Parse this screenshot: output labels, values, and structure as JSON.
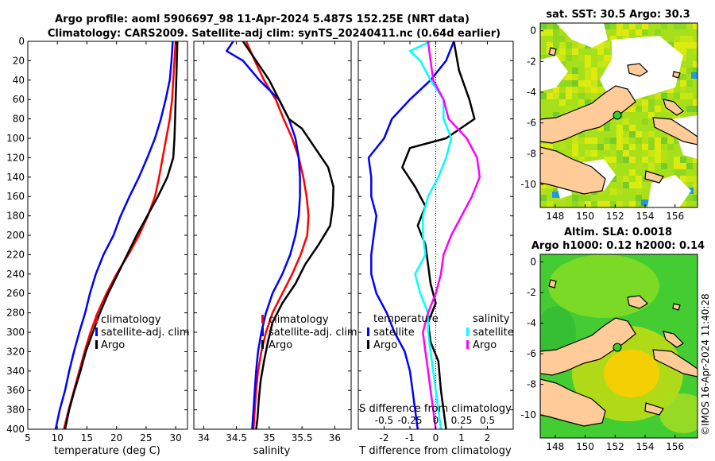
{
  "title": {
    "line1": "Argo profile: aoml 5906697_98 11-Apr-2024 5.487S 152.25E (NRT data)",
    "line2": "Climatology: CARS2009. Satellite-adj clim: synTS_20240411.nc (0.64d earlier)"
  },
  "stamp": "©IMOS 16-Apr-2024 11:40:28",
  "colors": {
    "clim": "#ff0000",
    "sat": "#0000ff",
    "argo": "#000000",
    "sal_sat": "#00ffff",
    "sal_diff": "#ff00ff"
  },
  "chart_data": [
    {
      "type": "line",
      "id": "temperature",
      "xlabel": "temperature (deg C)",
      "xlim": [
        5,
        32
      ],
      "ylim": [
        400,
        0
      ],
      "xticks": [
        5,
        10,
        15,
        20,
        25,
        30
      ],
      "yticks": [
        0,
        20,
        40,
        60,
        80,
        100,
        120,
        140,
        160,
        180,
        200,
        220,
        240,
        260,
        280,
        300,
        320,
        340,
        360,
        380,
        400
      ],
      "legend": [
        "climatology",
        "satellite-adj. clim",
        "Argo"
      ],
      "series": [
        {
          "name": "climatology",
          "color": "#ff0000",
          "points": [
            [
              30.0,
              0
            ],
            [
              29.8,
              20
            ],
            [
              29.6,
              40
            ],
            [
              29.4,
              60
            ],
            [
              29.0,
              80
            ],
            [
              28.4,
              100
            ],
            [
              27.8,
              120
            ],
            [
              27.2,
              140
            ],
            [
              26.5,
              160
            ],
            [
              25.3,
              180
            ],
            [
              23.8,
              200
            ],
            [
              22.0,
              220
            ],
            [
              20.0,
              240
            ],
            [
              18.3,
              260
            ],
            [
              16.8,
              280
            ],
            [
              15.6,
              300
            ],
            [
              14.6,
              320
            ],
            [
              13.7,
              340
            ],
            [
              12.8,
              360
            ],
            [
              11.9,
              380
            ],
            [
              11.1,
              400
            ]
          ]
        },
        {
          "name": "satellite-adj. clim",
          "color": "#0000ff",
          "points": [
            [
              29.5,
              0
            ],
            [
              29.3,
              20
            ],
            [
              29.0,
              40
            ],
            [
              28.3,
              60
            ],
            [
              27.5,
              80
            ],
            [
              26.5,
              100
            ],
            [
              25.2,
              120
            ],
            [
              23.8,
              140
            ],
            [
              22.2,
              160
            ],
            [
              20.7,
              180
            ],
            [
              19.5,
              200
            ],
            [
              17.8,
              220
            ],
            [
              16.5,
              240
            ],
            [
              15.5,
              260
            ],
            [
              14.7,
              280
            ],
            [
              13.7,
              300
            ],
            [
              12.8,
              320
            ],
            [
              12.0,
              340
            ],
            [
              11.3,
              360
            ],
            [
              10.4,
              380
            ],
            [
              9.7,
              400
            ]
          ]
        },
        {
          "name": "Argo",
          "color": "#000000",
          "points": [
            [
              30.3,
              0
            ],
            [
              30.2,
              20
            ],
            [
              30.1,
              40
            ],
            [
              30.0,
              60
            ],
            [
              29.9,
              80
            ],
            [
              29.8,
              100
            ],
            [
              29.6,
              120
            ],
            [
              28.6,
              140
            ],
            [
              27.0,
              160
            ],
            [
              25.2,
              180
            ],
            [
              23.4,
              200
            ],
            [
              21.8,
              220
            ],
            [
              20.2,
              240
            ],
            [
              18.6,
              260
            ],
            [
              17.2,
              280
            ],
            [
              16.0,
              300
            ],
            [
              14.8,
              320
            ],
            [
              13.9,
              340
            ],
            [
              12.9,
              360
            ],
            [
              12.0,
              380
            ],
            [
              11.3,
              400
            ]
          ]
        }
      ]
    },
    {
      "type": "line",
      "id": "salinity",
      "xlabel": "salinity",
      "xlim": [
        33.85,
        36.25
      ],
      "ylim": [
        400,
        0
      ],
      "xticks": [
        34,
        34.5,
        35,
        35.5,
        36
      ],
      "yticks": [
        0,
        20,
        40,
        60,
        80,
        100,
        120,
        140,
        160,
        180,
        200,
        220,
        240,
        260,
        280,
        300,
        320,
        340,
        360,
        380,
        400
      ],
      "legend": [
        "climatology",
        "satellite-adj. clim",
        "Argo"
      ],
      "series": [
        {
          "name": "climatology",
          "color": "#ff0000",
          "points": [
            [
              34.65,
              0
            ],
            [
              34.78,
              20
            ],
            [
              34.92,
              40
            ],
            [
              35.1,
              60
            ],
            [
              35.22,
              80
            ],
            [
              35.35,
              100
            ],
            [
              35.45,
              120
            ],
            [
              35.52,
              140
            ],
            [
              35.57,
              160
            ],
            [
              35.6,
              180
            ],
            [
              35.58,
              200
            ],
            [
              35.48,
              220
            ],
            [
              35.35,
              240
            ],
            [
              35.2,
              260
            ],
            [
              35.05,
              280
            ],
            [
              34.95,
              300
            ],
            [
              34.88,
              320
            ],
            [
              34.83,
              340
            ],
            [
              34.8,
              360
            ],
            [
              34.78,
              380
            ],
            [
              34.76,
              400
            ]
          ]
        },
        {
          "name": "satellite-adj. clim",
          "color": "#0000ff",
          "points": [
            [
              34.45,
              0
            ],
            [
              34.35,
              10
            ],
            [
              34.6,
              20
            ],
            [
              34.85,
              40
            ],
            [
              35.15,
              60
            ],
            [
              35.3,
              80
            ],
            [
              35.4,
              100
            ],
            [
              35.45,
              120
            ],
            [
              35.47,
              140
            ],
            [
              35.47,
              160
            ],
            [
              35.45,
              180
            ],
            [
              35.4,
              200
            ],
            [
              35.32,
              220
            ],
            [
              35.2,
              240
            ],
            [
              35.05,
              260
            ],
            [
              34.95,
              280
            ],
            [
              34.88,
              300
            ],
            [
              34.83,
              320
            ],
            [
              34.8,
              340
            ],
            [
              34.78,
              360
            ],
            [
              34.76,
              380
            ],
            [
              34.74,
              400
            ]
          ]
        },
        {
          "name": "Argo",
          "color": "#000000",
          "points": [
            [
              34.6,
              0
            ],
            [
              34.7,
              10
            ],
            [
              34.8,
              20
            ],
            [
              35.0,
              40
            ],
            [
              35.15,
              60
            ],
            [
              35.3,
              80
            ],
            [
              35.5,
              90
            ],
            [
              35.7,
              110
            ],
            [
              35.9,
              130
            ],
            [
              35.98,
              150
            ],
            [
              35.97,
              170
            ],
            [
              35.93,
              190
            ],
            [
              35.75,
              210
            ],
            [
              35.55,
              230
            ],
            [
              35.4,
              250
            ],
            [
              35.2,
              270
            ],
            [
              35.05,
              290
            ],
            [
              34.98,
              310
            ],
            [
              34.92,
              330
            ],
            [
              34.87,
              350
            ],
            [
              34.84,
              370
            ],
            [
              34.82,
              390
            ],
            [
              34.8,
              400
            ]
          ]
        }
      ]
    },
    {
      "type": "line",
      "id": "difference",
      "xlabel": "T difference from climatology",
      "xlabel2": "S difference from climatology",
      "xlim": [
        -3,
        3
      ],
      "ylim": [
        400,
        0
      ],
      "xticks": [
        -2,
        -1,
        0,
        1,
        2
      ],
      "xticks2": [
        -0.5,
        -0.25,
        0,
        0.25,
        0.5
      ],
      "tick_labels2": [
        "-0.5",
        "-0.25",
        "0",
        "0.25",
        "0.5"
      ],
      "yticks": [
        0,
        20,
        40,
        60,
        80,
        100,
        120,
        140,
        160,
        180,
        200,
        220,
        240,
        260,
        280,
        300,
        320,
        340,
        360,
        380,
        400
      ],
      "legend_headings": [
        "temperature",
        "salinity"
      ],
      "legend": [
        "satellite",
        "Argo",
        "satellite",
        "Argo"
      ],
      "series": [
        {
          "name": "temperature satellite",
          "color": "#0000ff",
          "points": [
            [
              0.7,
              0
            ],
            [
              0.4,
              20
            ],
            [
              -0.2,
              40
            ],
            [
              -1.0,
              60
            ],
            [
              -1.7,
              80
            ],
            [
              -2.0,
              100
            ],
            [
              -2.6,
              120
            ],
            [
              -2.5,
              140
            ],
            [
              -2.5,
              160
            ],
            [
              -2.3,
              180
            ],
            [
              -2.4,
              200
            ],
            [
              -2.5,
              220
            ],
            [
              -2.5,
              240
            ],
            [
              -2.3,
              260
            ],
            [
              -1.9,
              280
            ],
            [
              -1.6,
              300
            ],
            [
              -1.2,
              320
            ],
            [
              -1.0,
              340
            ],
            [
              -0.9,
              360
            ],
            [
              -0.8,
              380
            ],
            [
              -0.7,
              400
            ]
          ]
        },
        {
          "name": "temperature Argo",
          "color": "#000000",
          "points": [
            [
              0.7,
              0
            ],
            [
              0.9,
              30
            ],
            [
              1.3,
              60
            ],
            [
              1.5,
              80
            ],
            [
              0.4,
              100
            ],
            [
              -1.0,
              110
            ],
            [
              -1.3,
              130
            ],
            [
              -0.8,
              150
            ],
            [
              -0.4,
              170
            ],
            [
              -0.7,
              190
            ],
            [
              -0.4,
              210
            ],
            [
              -0.3,
              230
            ],
            [
              -0.2,
              250
            ],
            [
              0.0,
              270
            ],
            [
              -0.3,
              290
            ],
            [
              -0.2,
              310
            ],
            [
              0.1,
              330
            ],
            [
              0.2,
              360
            ],
            [
              0.3,
              380
            ],
            [
              0.4,
              400
            ]
          ]
        },
        {
          "name": "salinity satellite",
          "color": "#00ffff",
          "points": [
            [
              -0.2,
              0
            ],
            [
              -1.0,
              10
            ],
            [
              -0.6,
              20
            ],
            [
              -0.2,
              40
            ],
            [
              0.3,
              60
            ],
            [
              0.3,
              80
            ],
            [
              0.6,
              100
            ],
            [
              0.4,
              120
            ],
            [
              0.1,
              140
            ],
            [
              -0.3,
              160
            ],
            [
              -0.5,
              180
            ],
            [
              -0.5,
              200
            ],
            [
              -0.4,
              220
            ],
            [
              -0.8,
              240
            ],
            [
              -0.6,
              260
            ],
            [
              -0.3,
              280
            ],
            [
              -0.3,
              300
            ],
            [
              -0.2,
              320
            ],
            [
              -0.1,
              340
            ],
            [
              0.0,
              360
            ],
            [
              0.1,
              380
            ],
            [
              0.2,
              400
            ]
          ]
        },
        {
          "name": "salinity Argo",
          "color": "#ff00ff",
          "points": [
            [
              -0.3,
              0
            ],
            [
              -0.2,
              20
            ],
            [
              -0.1,
              40
            ],
            [
              0.3,
              60
            ],
            [
              0.5,
              80
            ],
            [
              1.2,
              100
            ],
            [
              1.6,
              120
            ],
            [
              1.7,
              140
            ],
            [
              1.4,
              160
            ],
            [
              1.0,
              180
            ],
            [
              0.6,
              200
            ],
            [
              0.3,
              220
            ],
            [
              0.2,
              240
            ],
            [
              0.0,
              260
            ],
            [
              -0.3,
              280
            ],
            [
              -0.5,
              300
            ],
            [
              -0.4,
              320
            ],
            [
              -0.3,
              340
            ],
            [
              -0.2,
              360
            ],
            [
              -0.1,
              380
            ],
            [
              0.0,
              400
            ]
          ]
        }
      ]
    },
    {
      "type": "heatmap",
      "id": "sst_map",
      "title": "sat. SST: 30.5 Argo: 30.3",
      "xticks": [
        148,
        150,
        152,
        154,
        156
      ],
      "yticks": [
        0,
        -2,
        -4,
        -6,
        -8,
        -10
      ],
      "xlim": [
        147,
        157.5
      ],
      "ylim": [
        -11.5,
        0.5
      ]
    },
    {
      "type": "heatmap",
      "id": "sla_map",
      "title": "Altim. SLA: 0.0018",
      "title2": "Argo h1000: 0.12 h2000: 0.14",
      "xticks": [
        148,
        150,
        152,
        154,
        156
      ],
      "yticks": [
        0,
        -2,
        -4,
        -6,
        -8,
        -10
      ],
      "xlim": [
        147,
        157.5
      ],
      "ylim": [
        -11.5,
        0.5
      ]
    }
  ]
}
